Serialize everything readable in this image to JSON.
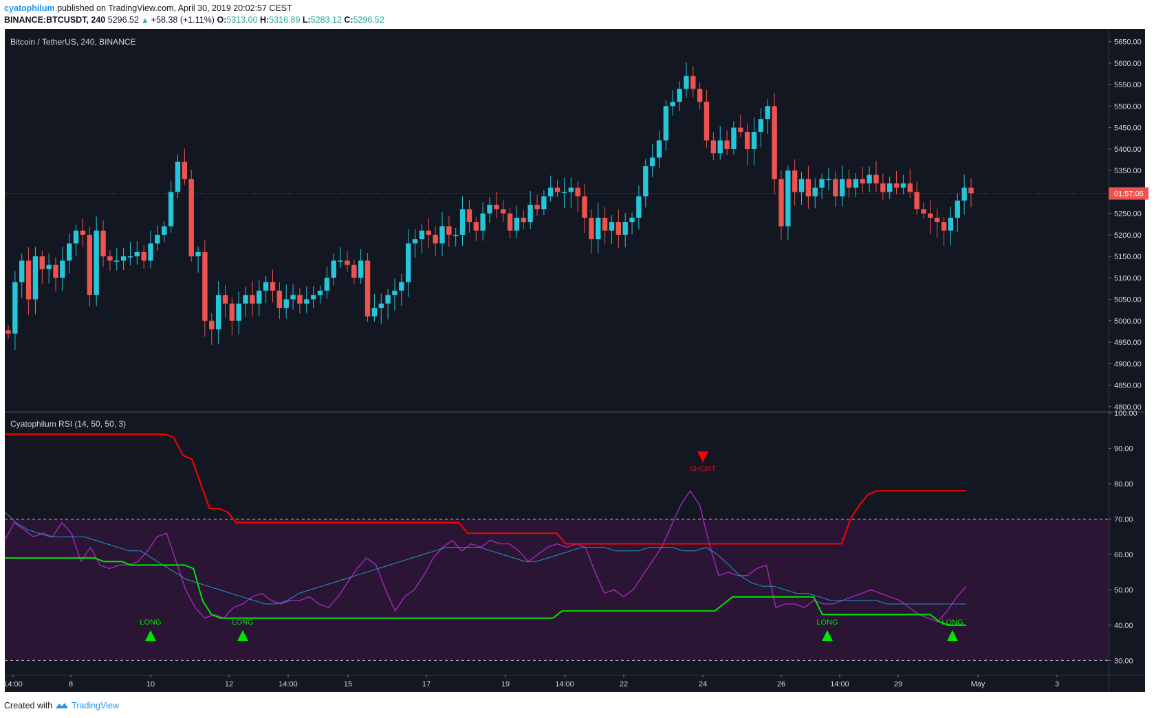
{
  "header": {
    "author": "cyatophilum",
    "published_text": "published on TradingView.com, April 30, 2019 20:02:57 CEST",
    "symbol": "BINANCE:BTCUSDT, 240",
    "last": "5296.52",
    "change": "+58.38 (+1.11%)",
    "o_label": "O:",
    "o": "5313.00",
    "h_label": "H:",
    "h": "5316.89",
    "l_label": "L:",
    "l": "5283.12",
    "c_label": "C:",
    "c": "5296.52"
  },
  "footer": {
    "created_with": "Created with",
    "brand": "TradingView"
  },
  "colors": {
    "bg": "#131722",
    "up": "#26c6da",
    "down": "#ef5350",
    "rsi": "#9c27b0",
    "rsi_ma": "#2196c8",
    "upper": "#ff0000",
    "lower": "#00e600",
    "band_fill": "#2a1535",
    "long": "#00e600",
    "short": "#ff0000"
  },
  "chart_data": [
    {
      "type": "candlestick",
      "title": "Bitcoin / TetherUS, 240, BINANCE",
      "ylim": [
        4790,
        5680
      ],
      "y_ticks": [
        "5650.00",
        "5600.00",
        "5550.00",
        "5500.00",
        "5450.00",
        "5400.00",
        "5350.00",
        "5300.00",
        "5250.00",
        "5200.00",
        "5150.00",
        "5100.00",
        "5050.00",
        "5000.00",
        "4950.00",
        "4900.00",
        "4850.00",
        "4800.00"
      ],
      "last_price_label": "01:57:05",
      "last_price": 5296.52,
      "closes": [
        4970,
        5090,
        5140,
        5050,
        5150,
        5120,
        5130,
        5100,
        5140,
        5180,
        5210,
        5200,
        5060,
        5210,
        5150,
        5140,
        5140,
        5150,
        5150,
        5160,
        5140,
        5180,
        5200,
        5220,
        5300,
        5370,
        5330,
        5150,
        5160,
        5000,
        4980,
        5060,
        5040,
        5000,
        5040,
        5060,
        5040,
        5070,
        5090,
        5070,
        5030,
        5050,
        5060,
        5040,
        5050,
        5060,
        5070,
        5100,
        5140,
        5140,
        5130,
        5100,
        5140,
        5010,
        5030,
        5040,
        5060,
        5070,
        5090,
        5180,
        5190,
        5210,
        5200,
        5180,
        5220,
        5200,
        5200,
        5260,
        5230,
        5210,
        5250,
        5270,
        5260,
        5250,
        5210,
        5240,
        5230,
        5270,
        5260,
        5290,
        5310,
        5300,
        5300,
        5310,
        5290,
        5240,
        5190,
        5240,
        5210,
        5230,
        5200,
        5230,
        5240,
        5290,
        5360,
        5380,
        5420,
        5500,
        5510,
        5540,
        5570,
        5540,
        5510,
        5420,
        5390,
        5420,
        5400,
        5450,
        5440,
        5400,
        5440,
        5470,
        5500,
        5330,
        5220,
        5350,
        5300,
        5330,
        5290,
        5310,
        5330,
        5330,
        5290,
        5330,
        5310,
        5330,
        5320,
        5340,
        5320,
        5300,
        5320,
        5310,
        5320,
        5300,
        5260,
        5250,
        5240,
        5230,
        5210,
        5240,
        5280,
        5310,
        5297
      ]
    },
    {
      "type": "line",
      "title": "Cyatophilum RSI (14, 50, 50, 3)",
      "ylim": [
        26,
        100
      ],
      "y_ticks": [
        "100.00",
        "90.00",
        "80.00",
        "70.00",
        "60.00",
        "50.00",
        "40.00",
        "30.00"
      ],
      "bands": [
        30,
        70
      ],
      "x_ticks": [
        "14:00",
        "8",
        "10",
        "12",
        "14:00",
        "15",
        "17",
        "19",
        "14:00",
        "22",
        "24",
        "26",
        "14:00",
        "29",
        "May",
        "3"
      ],
      "series": [
        {
          "role": "rsi",
          "values": [
            64,
            69,
            67,
            65,
            66,
            65,
            69,
            66,
            58,
            62,
            57,
            56,
            57,
            57,
            58,
            61,
            65,
            66,
            58,
            50,
            45,
            42,
            43,
            42,
            45,
            46,
            48,
            49,
            47,
            46,
            47,
            47,
            48,
            46,
            45,
            48,
            52,
            56,
            59,
            57,
            50,
            44,
            48,
            50,
            54,
            59,
            62,
            64,
            61,
            63,
            62,
            64,
            63,
            63,
            61,
            58,
            60,
            62,
            63,
            62,
            63,
            62,
            55,
            49,
            50,
            48,
            50,
            54,
            58,
            62,
            68,
            74,
            78,
            74,
            63,
            54,
            55,
            54,
            54,
            56,
            57,
            45,
            46,
            46,
            45,
            47,
            46,
            46,
            47,
            48,
            49,
            50,
            49,
            48,
            47,
            45,
            43,
            42,
            41,
            44,
            48,
            51
          ]
        },
        {
          "role": "rsi_ma",
          "values": [
            72,
            69,
            67,
            66,
            65,
            65,
            65,
            65,
            64,
            63,
            62,
            61,
            61,
            59,
            57,
            55,
            53,
            52,
            51,
            50,
            49,
            48,
            47,
            46,
            46,
            47,
            49,
            50,
            51,
            52,
            53,
            54,
            55,
            56,
            57,
            58,
            59,
            60,
            61,
            62,
            62,
            62,
            62,
            61,
            60,
            59,
            58,
            58,
            59,
            60,
            61,
            62,
            62,
            62,
            61,
            61,
            61,
            62,
            62,
            62,
            61,
            61,
            62,
            60,
            57,
            54,
            52,
            51,
            51,
            50,
            49,
            49,
            48,
            47,
            47,
            47,
            47,
            47,
            46,
            46,
            46,
            46,
            46,
            46,
            46,
            46
          ]
        },
        {
          "role": "upper",
          "values": [
            94,
            94,
            94,
            94,
            94,
            94,
            94,
            94,
            94,
            94,
            94,
            94,
            94,
            94,
            94,
            94,
            94,
            94,
            94,
            93,
            88,
            87,
            80,
            73,
            73,
            72,
            69,
            69,
            69,
            69,
            69,
            69,
            69,
            69,
            69,
            69,
            69,
            69,
            69,
            69,
            69,
            69,
            69,
            69,
            69,
            69,
            69,
            69,
            69,
            69,
            69,
            69,
            66,
            66,
            66,
            66,
            66,
            66,
            66,
            66,
            66,
            66,
            66,
            63,
            63,
            63,
            63,
            63,
            63,
            63,
            63,
            63,
            63,
            63,
            63,
            63,
            63,
            63,
            63,
            63,
            63,
            63,
            63,
            63,
            63,
            63,
            63,
            63,
            63,
            63,
            63,
            63,
            63,
            63,
            63,
            70,
            74,
            77,
            78,
            78,
            78,
            78,
            78,
            78,
            78,
            78,
            78,
            78,
            78
          ]
        },
        {
          "role": "lower",
          "values": [
            59,
            59,
            59,
            59,
            59,
            59,
            59,
            59,
            59,
            59,
            59,
            58,
            58,
            58,
            57,
            57,
            57,
            57,
            57,
            57,
            57,
            56,
            47,
            43,
            42,
            42,
            42,
            42,
            42,
            42,
            42,
            42,
            42,
            42,
            42,
            42,
            42,
            42,
            42,
            42,
            42,
            42,
            42,
            42,
            42,
            42,
            42,
            42,
            42,
            42,
            42,
            42,
            42,
            42,
            42,
            42,
            42,
            42,
            42,
            42,
            42,
            42,
            44,
            44,
            44,
            44,
            44,
            44,
            44,
            44,
            44,
            44,
            44,
            44,
            44,
            44,
            44,
            44,
            44,
            44,
            46,
            48,
            48,
            48,
            48,
            48,
            48,
            48,
            48,
            48,
            48,
            43,
            43,
            43,
            43,
            43,
            43,
            43,
            43,
            43,
            43,
            43,
            43,
            43,
            41,
            40,
            40,
            40
          ]
        }
      ],
      "signals": [
        {
          "label": "LONG",
          "dir": "up"
        },
        {
          "label": "LONG",
          "dir": "up"
        },
        {
          "label": "SHORT",
          "dir": "down"
        },
        {
          "label": "LONG",
          "dir": "up"
        },
        {
          "label": "LONG",
          "dir": "up"
        }
      ]
    }
  ]
}
